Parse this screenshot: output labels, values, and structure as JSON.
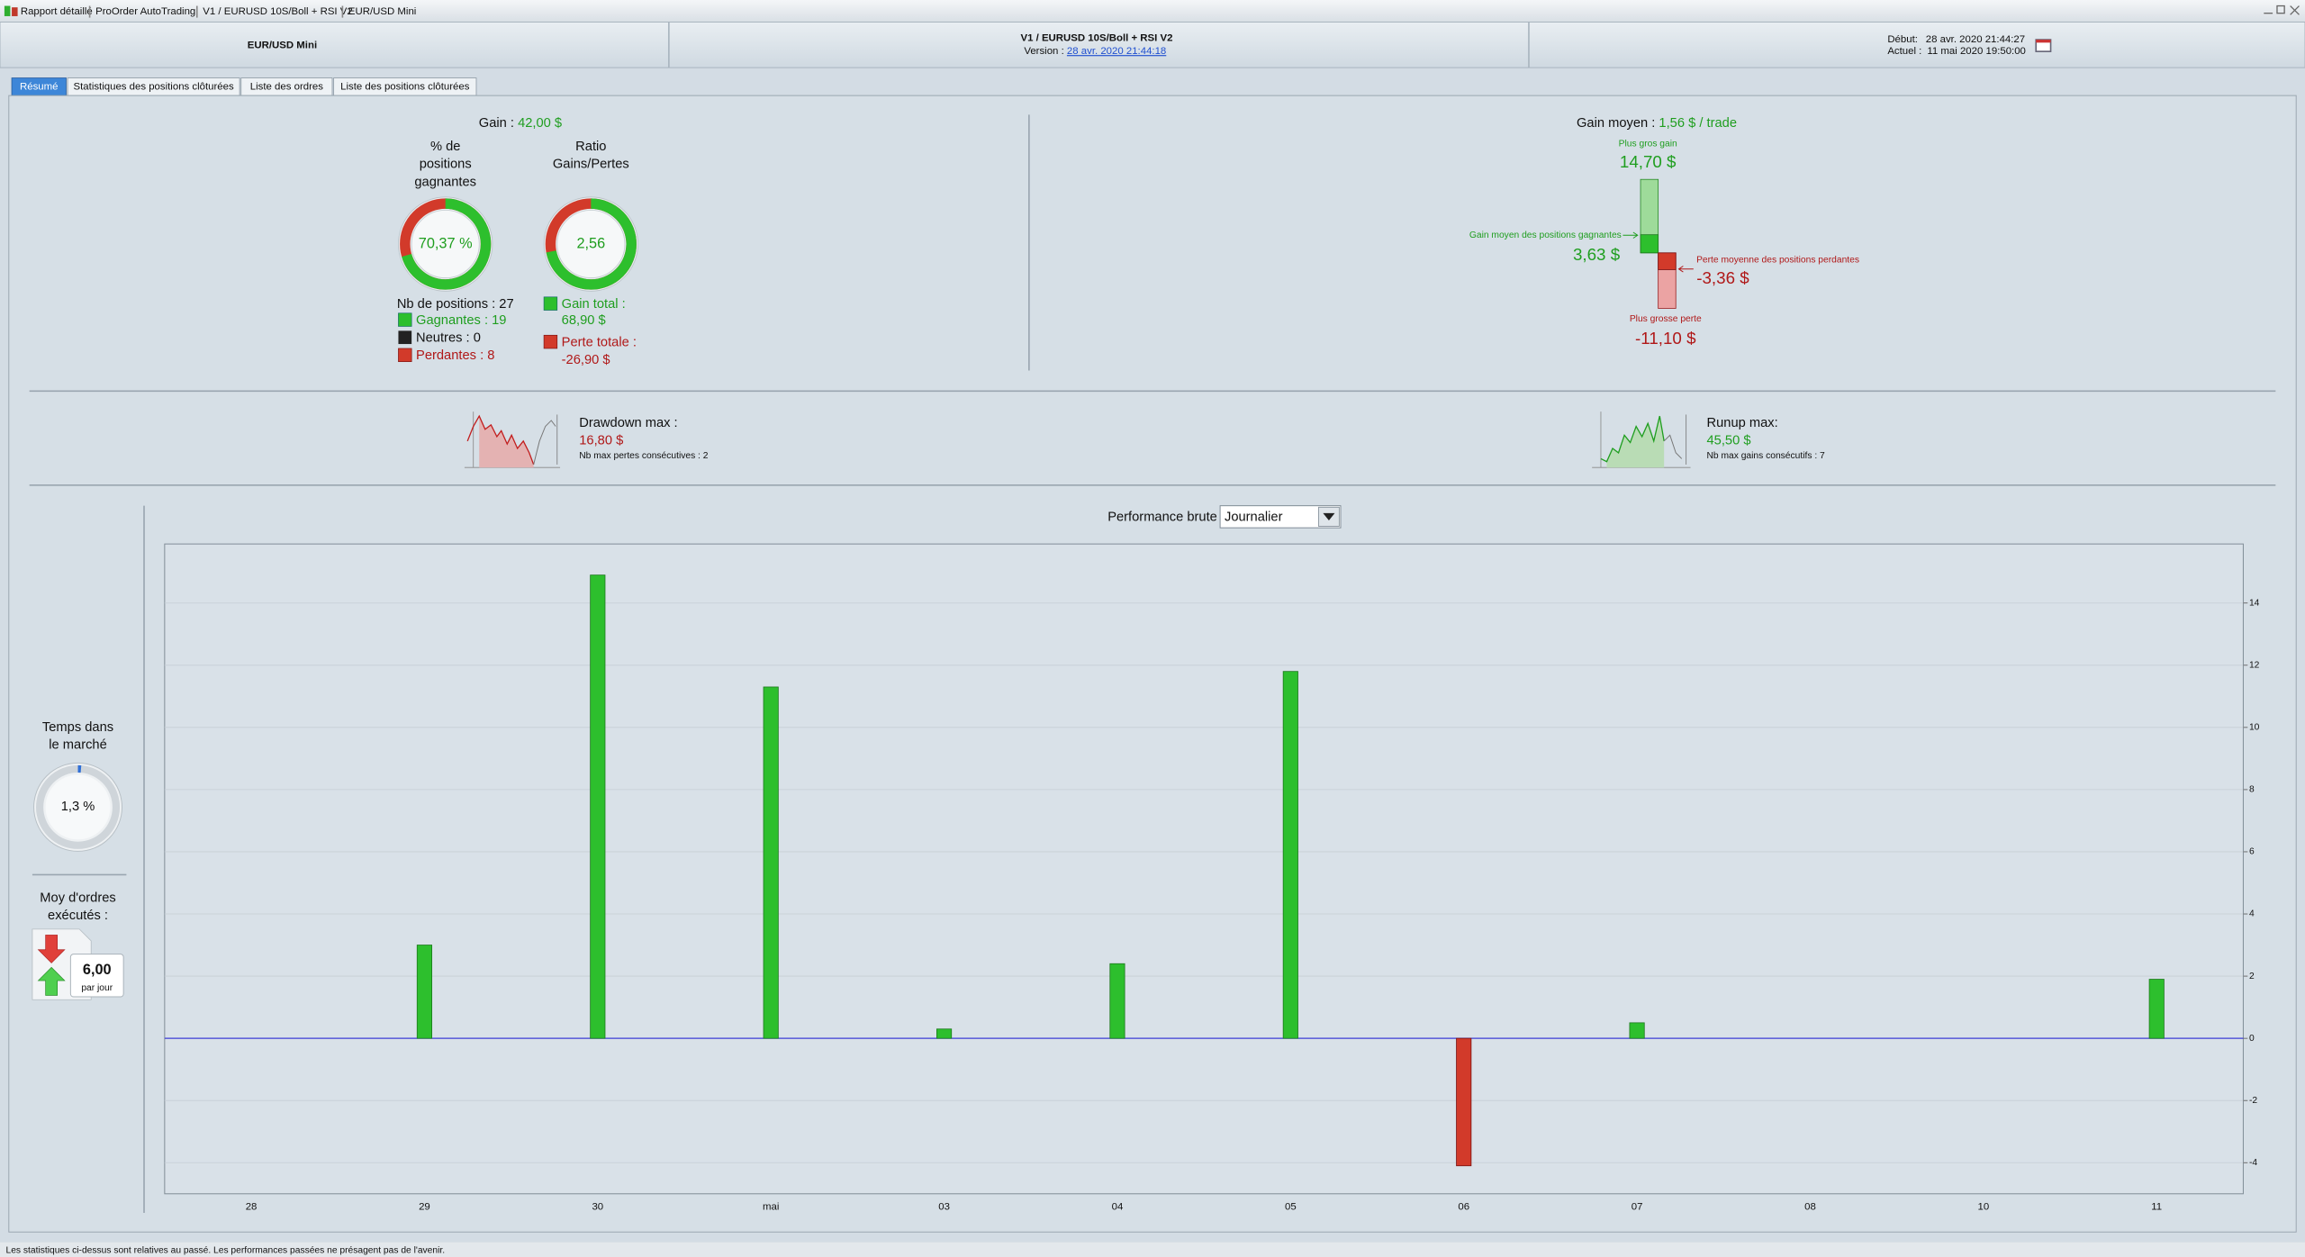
{
  "window": {
    "title_items": [
      "Rapport détaillé",
      "ProOrder AutoTrading",
      "V1 / EURUSD 10S/Boll + RSI V2",
      "EUR/USD Mini"
    ]
  },
  "header": {
    "instrument": "EUR/USD Mini",
    "strategy": "V1 / EURUSD 10S/Boll + RSI V2",
    "version_label": "Version :",
    "version": "28 avr. 2020 21:44:18",
    "start_label": "Début:",
    "start": "28 avr. 2020 21:44:27",
    "current_label": "Actuel :",
    "current": "11 mai 2020 19:50:00"
  },
  "tabs": [
    "Résumé",
    "Statistiques des positions clôturées",
    "Liste des ordres",
    "Liste des positions clôturées"
  ],
  "summary": {
    "gain_label": "Gain :",
    "gain": "42,00 $",
    "win_rate_title": [
      "% de",
      "positions",
      "gagnantes"
    ],
    "win_rate": {
      "value": 70.37,
      "label": "70,37 %"
    },
    "ratio_title": [
      "Ratio",
      "Gains/Pertes"
    ],
    "ratio": {
      "value": 2.56,
      "label": "2,56"
    },
    "positions": "Nb de positions : 27",
    "winners": "Gagnantes : 19",
    "neutral": "Neutres : 0",
    "losers": "Perdantes : 8",
    "gain_total_label": "Gain total :",
    "gain_total": "68,90 $",
    "loss_total_label": "Perte totale :",
    "loss_total": "-26,90 $",
    "avg_gain_label": "Gain moyen :",
    "avg_gain": "1,56 $ / trade",
    "biggest_gain_label": "Plus gros gain",
    "biggest_gain": {
      "value": 14.7,
      "label": "14,70 $"
    },
    "avg_winner_label": "Gain moyen des positions gagnantes",
    "avg_winner": {
      "value": 3.63,
      "label": "3,63 $"
    },
    "avg_loser_label": "Perte moyenne des positions perdantes",
    "avg_loser": {
      "value": -3.36,
      "label": "-3,36 $"
    },
    "biggest_loss_label": "Plus grosse perte",
    "biggest_loss": {
      "value": -11.1,
      "label": "-11,10 $"
    }
  },
  "drawdown": {
    "label": "Drawdown max :",
    "value": "16,80 $",
    "note": "Nb max pertes consécutives : 2"
  },
  "runup": {
    "label": "Runup max:",
    "value": "45,50 $",
    "note": "Nb max gains consécutifs : 7"
  },
  "market_time": {
    "title": [
      "Temps dans",
      "le marché"
    ],
    "value": {
      "value": 1.3,
      "label": "1,3 %"
    }
  },
  "orders": {
    "title": [
      "Moy d'ordres",
      "exécutés :"
    ],
    "value": "6,00",
    "unit": "par jour"
  },
  "chart_data": {
    "type": "bar",
    "title": "Performance brute",
    "period": "Journalier",
    "categories": [
      "28",
      "29",
      "30",
      "mai",
      "03",
      "04",
      "05",
      "06",
      "07",
      "08",
      "10",
      "11"
    ],
    "values": [
      null,
      3.0,
      14.9,
      11.3,
      0.3,
      2.4,
      11.8,
      -4.1,
      0.5,
      null,
      null,
      1.9
    ],
    "colors": {
      "positive": "#2dbf2d",
      "negative": "#d23a2a"
    },
    "zero_line_color": "#3d3dd6",
    "ylim": [
      -5,
      15.9
    ],
    "yticks": [
      -4,
      -2,
      0,
      2,
      4,
      6,
      8,
      10,
      12,
      14
    ],
    "grid": true
  },
  "footer": "Les statistiques ci-dessus sont relatives au passé. Les performances passées ne présagent pas de l'avenir."
}
